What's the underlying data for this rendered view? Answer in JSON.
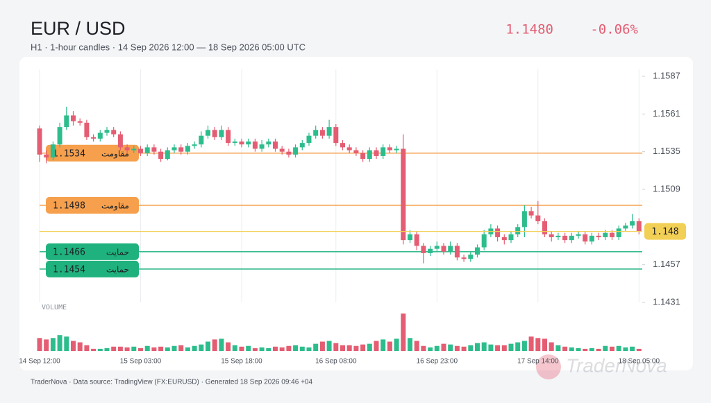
{
  "header": {
    "title": "EUR / USD",
    "subtitle": "H1 · 1-hour candles · 14 Sep 2026 12:00 — 18 Sep 2026 05:00 UTC",
    "price": "1.1480",
    "change": "-0.06%"
  },
  "chart_data": {
    "type": "candlestick",
    "volume_label": "VOLUME",
    "categories": [
      "14 Sep 12:00",
      null,
      null,
      null,
      null,
      null,
      null,
      null,
      null,
      null,
      null,
      null,
      null,
      null,
      null,
      "15 Sep 03:00",
      null,
      null,
      null,
      null,
      null,
      null,
      null,
      null,
      null,
      null,
      null,
      null,
      null,
      null,
      "15 Sep 18:00",
      null,
      null,
      null,
      null,
      null,
      null,
      null,
      null,
      null,
      null,
      null,
      null,
      null,
      "16 Sep 08:00",
      null,
      null,
      null,
      null,
      null,
      null,
      null,
      null,
      null,
      null,
      null,
      null,
      null,
      null,
      "16 Sep 23:00",
      null,
      null,
      null,
      null,
      null,
      null,
      null,
      null,
      null,
      null,
      null,
      null,
      null,
      null,
      "17 Sep 14:00",
      null,
      null,
      null,
      null,
      null,
      null,
      null,
      null,
      null,
      null,
      null,
      null,
      null,
      null,
      "18 Sep 05:00"
    ],
    "ohlc": [
      [
        1.1551,
        1.1553,
        1.1528,
        1.1533
      ],
      [
        1.1533,
        1.1536,
        1.1527,
        1.1531
      ],
      [
        1.1531,
        1.1542,
        1.1529,
        1.154
      ],
      [
        1.154,
        1.1555,
        1.1538,
        1.1552
      ],
      [
        1.1552,
        1.1566,
        1.155,
        1.156
      ],
      [
        1.156,
        1.1563,
        1.1553,
        1.1556
      ],
      [
        1.1556,
        1.1558,
        1.1553,
        1.1555
      ],
      [
        1.1555,
        1.1557,
        1.1543,
        1.1545
      ],
      [
        1.1545,
        1.1547,
        1.1542,
        1.1544
      ],
      [
        1.1544,
        1.155,
        1.1542,
        1.1548
      ],
      [
        1.1548,
        1.1552,
        1.1546,
        1.155
      ],
      [
        1.155,
        1.1552,
        1.1545,
        1.1547
      ],
      [
        1.1547,
        1.1549,
        1.1536,
        1.1538
      ],
      [
        1.1538,
        1.154,
        1.1534,
        1.1536
      ],
      [
        1.1536,
        1.1539,
        1.1534,
        1.1537
      ],
      [
        1.1537,
        1.1539,
        1.1532,
        1.1534
      ],
      [
        1.1534,
        1.154,
        1.1532,
        1.1538
      ],
      [
        1.1538,
        1.154,
        1.1533,
        1.1535
      ],
      [
        1.1535,
        1.1537,
        1.1528,
        1.153
      ],
      [
        1.153,
        1.1538,
        1.1529,
        1.1536
      ],
      [
        1.1536,
        1.154,
        1.1534,
        1.1538
      ],
      [
        1.1538,
        1.154,
        1.1533,
        1.1535
      ],
      [
        1.1535,
        1.1541,
        1.1533,
        1.1539
      ],
      [
        1.1539,
        1.1542,
        1.1537,
        1.154
      ],
      [
        1.154,
        1.1549,
        1.1538,
        1.1546
      ],
      [
        1.1546,
        1.1553,
        1.1544,
        1.155
      ],
      [
        1.155,
        1.1552,
        1.1543,
        1.1545
      ],
      [
        1.1545,
        1.1553,
        1.1543,
        1.155
      ],
      [
        1.155,
        1.1552,
        1.1539,
        1.1541
      ],
      [
        1.1541,
        1.1544,
        1.1539,
        1.1542
      ],
      [
        1.1542,
        1.1544,
        1.1538,
        1.154
      ],
      [
        1.154,
        1.1544,
        1.1538,
        1.1542
      ],
      [
        1.1542,
        1.1544,
        1.1535,
        1.1537
      ],
      [
        1.1537,
        1.1543,
        1.1535,
        1.154
      ],
      [
        1.154,
        1.1544,
        1.1538,
        1.1542
      ],
      [
        1.1542,
        1.1544,
        1.1535,
        1.1537
      ],
      [
        1.1537,
        1.1539,
        1.1533,
        1.1535
      ],
      [
        1.1535,
        1.1537,
        1.1531,
        1.1533
      ],
      [
        1.1533,
        1.154,
        1.1531,
        1.1538
      ],
      [
        1.1538,
        1.1543,
        1.1536,
        1.1541
      ],
      [
        1.1541,
        1.1548,
        1.1539,
        1.1546
      ],
      [
        1.1546,
        1.1553,
        1.1544,
        1.155
      ],
      [
        1.155,
        1.1552,
        1.1544,
        1.1546
      ],
      [
        1.1546,
        1.1557,
        1.1544,
        1.1552
      ],
      [
        1.1552,
        1.1554,
        1.1539,
        1.1541
      ],
      [
        1.1541,
        1.1543,
        1.1536,
        1.1538
      ],
      [
        1.1538,
        1.154,
        1.1534,
        1.1536
      ],
      [
        1.1536,
        1.1538,
        1.1532,
        1.1534
      ],
      [
        1.1534,
        1.1536,
        1.1528,
        1.153
      ],
      [
        1.153,
        1.1538,
        1.1528,
        1.1536
      ],
      [
        1.1536,
        1.1538,
        1.153,
        1.1532
      ],
      [
        1.1532,
        1.154,
        1.153,
        1.1538
      ],
      [
        1.1538,
        1.154,
        1.1534,
        1.1536
      ],
      [
        1.1536,
        1.1539,
        1.1534,
        1.1537
      ],
      [
        1.1537,
        1.1547,
        1.1471,
        1.1474
      ],
      [
        1.1474,
        1.1481,
        1.1472,
        1.1478
      ],
      [
        1.1478,
        1.148,
        1.1467,
        1.147
      ],
      [
        1.147,
        1.1472,
        1.1458,
        1.1465
      ],
      [
        1.1465,
        1.147,
        1.1463,
        1.1468
      ],
      [
        1.1468,
        1.1473,
        1.1466,
        1.147
      ],
      [
        1.147,
        1.1472,
        1.1464,
        1.1466
      ],
      [
        1.1466,
        1.1473,
        1.1464,
        1.147
      ],
      [
        1.147,
        1.1472,
        1.146,
        1.1462
      ],
      [
        1.1462,
        1.1464,
        1.1459,
        1.1461
      ],
      [
        1.1461,
        1.1466,
        1.1459,
        1.1464
      ],
      [
        1.1464,
        1.1471,
        1.1462,
        1.1469
      ],
      [
        1.1469,
        1.1481,
        1.1467,
        1.1478
      ],
      [
        1.1478,
        1.1485,
        1.1476,
        1.1482
      ],
      [
        1.1482,
        1.1484,
        1.1473,
        1.1476
      ],
      [
        1.1476,
        1.1478,
        1.1471,
        1.1474
      ],
      [
        1.1474,
        1.148,
        1.1472,
        1.1478
      ],
      [
        1.1478,
        1.1485,
        1.1476,
        1.1483
      ],
      [
        1.1483,
        1.1498,
        1.1476,
        1.1494
      ],
      [
        1.1494,
        1.1497,
        1.1489,
        1.1491
      ],
      [
        1.1491,
        1.1501,
        1.1485,
        1.1487
      ],
      [
        1.1487,
        1.1489,
        1.1476,
        1.1478
      ],
      [
        1.1478,
        1.148,
        1.1473,
        1.1476
      ],
      [
        1.1476,
        1.1479,
        1.1474,
        1.1477
      ],
      [
        1.1477,
        1.1479,
        1.1472,
        1.1474
      ],
      [
        1.1474,
        1.1479,
        1.1472,
        1.1477
      ],
      [
        1.1477,
        1.148,
        1.1475,
        1.1478
      ],
      [
        1.1478,
        1.148,
        1.1471,
        1.1473
      ],
      [
        1.1473,
        1.1479,
        1.1471,
        1.1477
      ],
      [
        1.1477,
        1.1479,
        1.1474,
        1.1476
      ],
      [
        1.1476,
        1.1481,
        1.1474,
        1.1479
      ],
      [
        1.1479,
        1.1481,
        1.1474,
        1.1476
      ],
      [
        1.1476,
        1.1484,
        1.1474,
        1.1482
      ],
      [
        1.1482,
        1.1486,
        1.148,
        1.1484
      ],
      [
        1.1484,
        1.1492,
        1.1482,
        1.1487
      ],
      [
        1.1487,
        1.1489,
        1.1478,
        1.148
      ]
    ],
    "volume": [
      18,
      16,
      18,
      22,
      20,
      14,
      12,
      8,
      3,
      3,
      4,
      6,
      6,
      5,
      6,
      4,
      7,
      5,
      6,
      5,
      7,
      8,
      5,
      7,
      9,
      13,
      16,
      17,
      12,
      8,
      6,
      7,
      4,
      5,
      4,
      6,
      5,
      7,
      8,
      6,
      5,
      10,
      13,
      14,
      11,
      8,
      8,
      7,
      9,
      10,
      14,
      16,
      13,
      17,
      52,
      18,
      14,
      7,
      5,
      7,
      10,
      9,
      7,
      6,
      8,
      11,
      12,
      9,
      8,
      8,
      10,
      12,
      14,
      20,
      18,
      17,
      12,
      8,
      6,
      5,
      4,
      3,
      4,
      3,
      7,
      6,
      7,
      5,
      6,
      3
    ],
    "up_color": "#2dbd8c",
    "down_color": "#e45d72",
    "ylim": [
      1.1431,
      1.1587
    ],
    "yticks": [
      1.1587,
      1.1561,
      1.1535,
      1.1509,
      1.1457,
      1.1431
    ],
    "last_price": 1.148,
    "last_color": "#f2cf55",
    "levels": [
      {
        "value": 1.1534,
        "label": "مقاومت",
        "color": "#f6a04d"
      },
      {
        "value": 1.1498,
        "label": "مقاومت",
        "color": "#f6a04d"
      },
      {
        "value": 1.1466,
        "label": "حمایت",
        "color": "#1fb27e"
      },
      {
        "value": 1.1454,
        "label": "حمایت",
        "color": "#1fb27e"
      }
    ]
  },
  "footer": {
    "note": "TraderNova · Data source: TradingView (FX:EURUSD) · Generated 18 Sep 2026 09:46 +04",
    "watermark": "TraderNova"
  }
}
